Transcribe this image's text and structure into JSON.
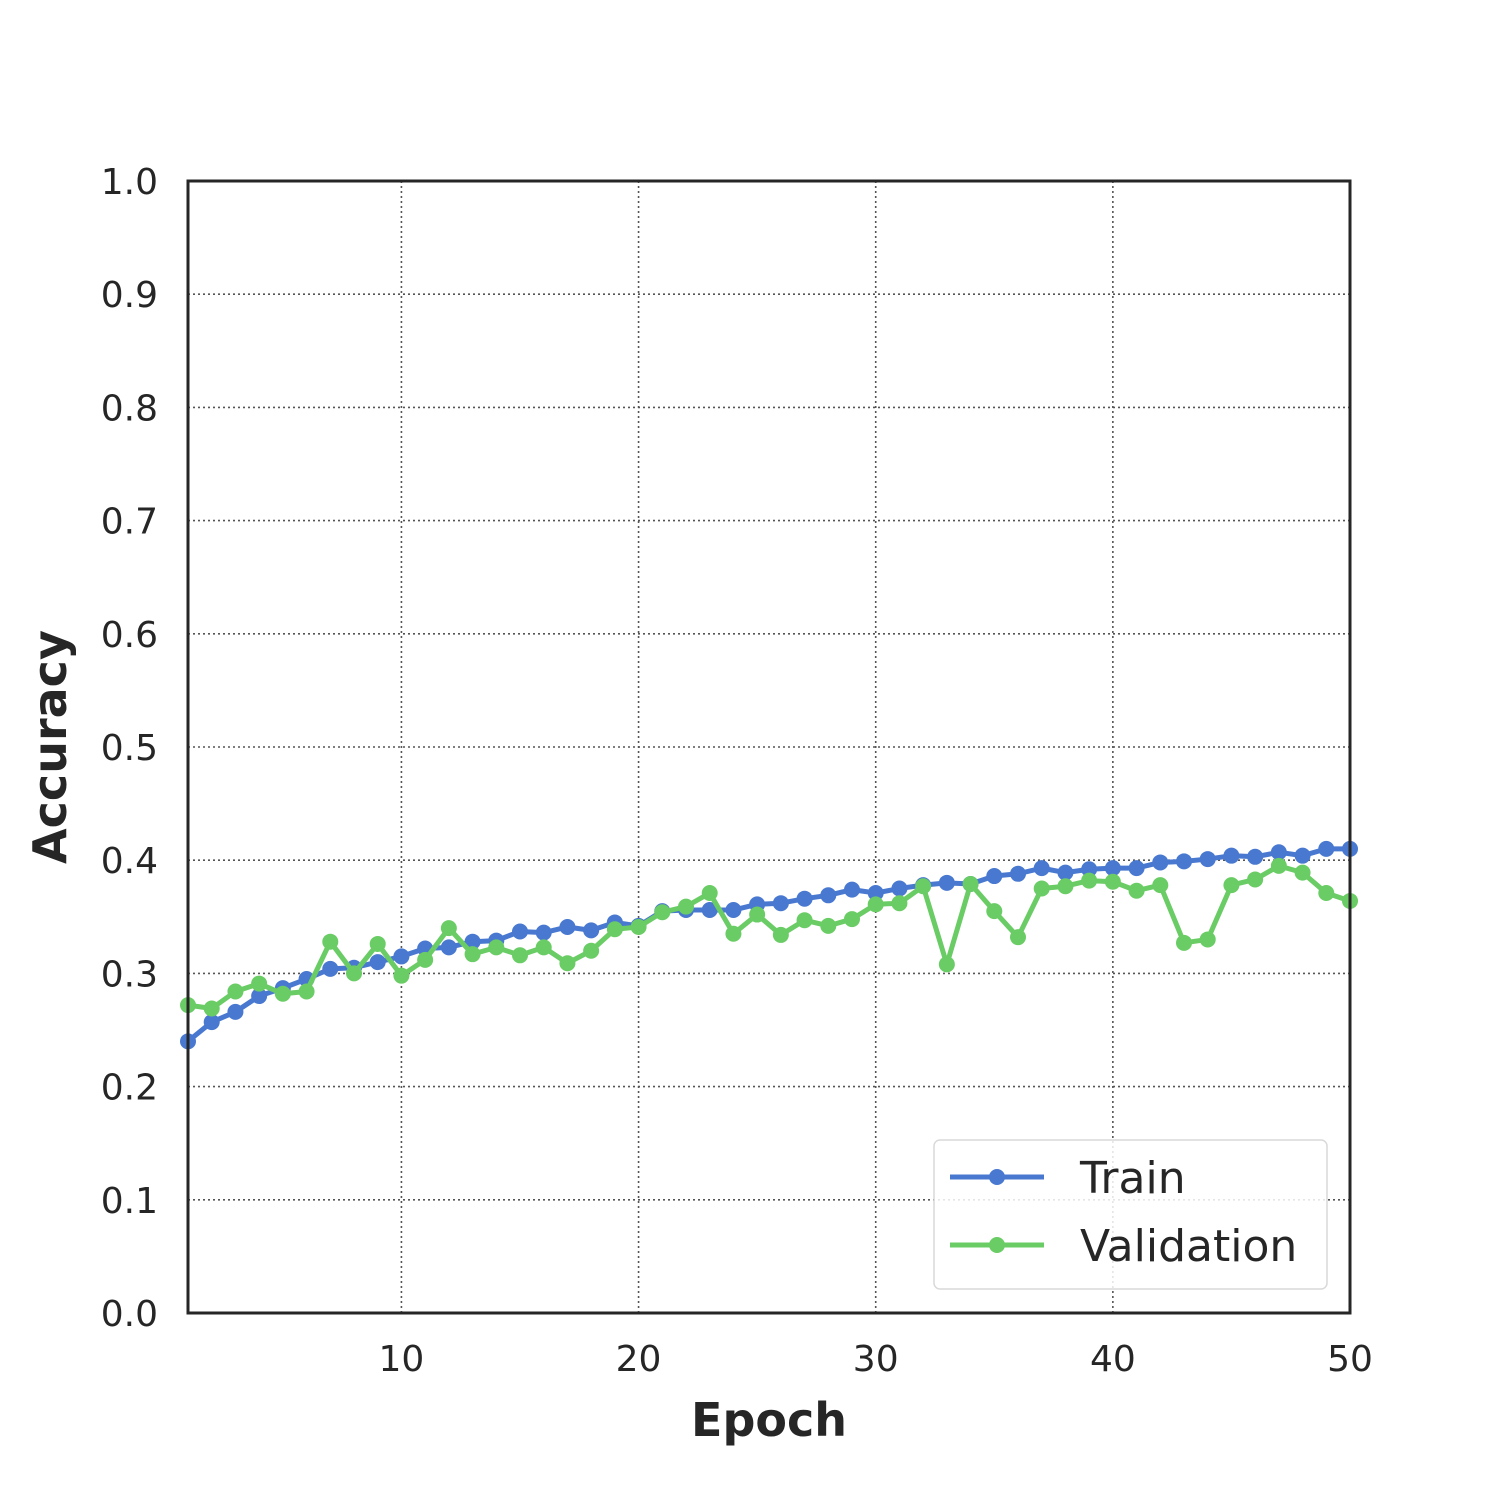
{
  "chart_data": {
    "type": "line",
    "title": "",
    "xlabel": "Epoch",
    "ylabel": "Accuracy",
    "xlim": [
      1,
      50
    ],
    "ylim": [
      0.0,
      1.0
    ],
    "x_ticks": [
      "10",
      "20",
      "30",
      "40",
      "50"
    ],
    "y_ticks": [
      "0.0",
      "0.1",
      "0.2",
      "0.3",
      "0.4",
      "0.5",
      "0.6",
      "0.7",
      "0.8",
      "0.9",
      "1.0"
    ],
    "grid": true,
    "legend_position": "lower-right",
    "x": [
      1,
      2,
      3,
      4,
      5,
      6,
      7,
      8,
      9,
      10,
      11,
      12,
      13,
      14,
      15,
      16,
      17,
      18,
      19,
      20,
      21,
      22,
      23,
      24,
      25,
      26,
      27,
      28,
      29,
      30,
      31,
      32,
      33,
      34,
      35,
      36,
      37,
      38,
      39,
      40,
      41,
      42,
      43,
      44,
      45,
      46,
      47,
      48,
      49,
      50
    ],
    "series": [
      {
        "name": "Train",
        "color": "#4878d0",
        "values": [
          0.24,
          0.257,
          0.266,
          0.28,
          0.287,
          0.295,
          0.304,
          0.305,
          0.31,
          0.315,
          0.322,
          0.323,
          0.328,
          0.329,
          0.337,
          0.336,
          0.341,
          0.338,
          0.345,
          0.342,
          0.355,
          0.356,
          0.356,
          0.356,
          0.361,
          0.362,
          0.366,
          0.369,
          0.374,
          0.371,
          0.375,
          0.378,
          0.38,
          0.379,
          0.386,
          0.388,
          0.393,
          0.389,
          0.392,
          0.393,
          0.393,
          0.398,
          0.399,
          0.401,
          0.404,
          0.403,
          0.407,
          0.404,
          0.41,
          0.41
        ]
      },
      {
        "name": "Validation",
        "color": "#6acc64",
        "values": [
          0.272,
          0.269,
          0.284,
          0.291,
          0.282,
          0.284,
          0.328,
          0.3,
          0.326,
          0.298,
          0.312,
          0.34,
          0.317,
          0.323,
          0.316,
          0.323,
          0.309,
          0.32,
          0.339,
          0.341,
          0.354,
          0.359,
          0.371,
          0.335,
          0.352,
          0.334,
          0.347,
          0.342,
          0.348,
          0.361,
          0.362,
          0.377,
          0.308,
          0.379,
          0.355,
          0.332,
          0.375,
          0.377,
          0.382,
          0.381,
          0.373,
          0.378,
          0.327,
          0.33,
          0.378,
          0.383,
          0.395,
          0.389,
          0.371,
          0.364
        ]
      }
    ]
  }
}
